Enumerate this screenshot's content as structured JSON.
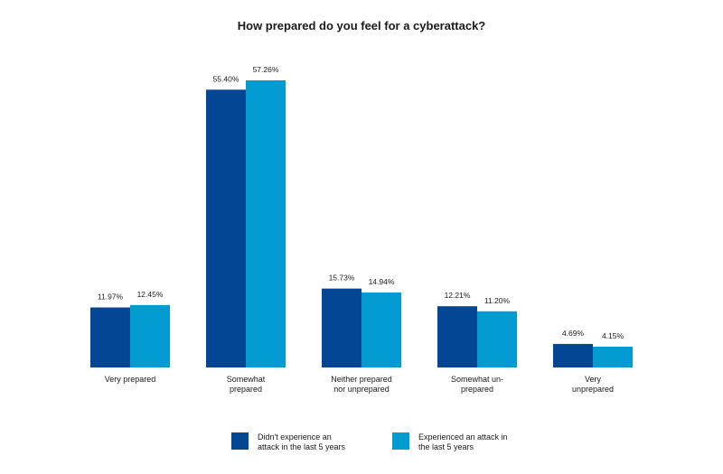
{
  "chart_data": {
    "type": "bar",
    "title": "How prepared do you feel for a cyberattack?",
    "categories": [
      [
        "Very prepared"
      ],
      [
        "Somewhat",
        "prepared"
      ],
      [
        "Neither prepared",
        "nor unprepared"
      ],
      [
        "Somewhat un-",
        "prepared"
      ],
      [
        "Very",
        "unprepared"
      ]
    ],
    "series": [
      {
        "name": "Didn't experience an attack in the last 5 years",
        "color": "#034694",
        "values": [
          11.97,
          55.4,
          15.73,
          12.21,
          4.69
        ],
        "labels": [
          "11.97%",
          "55.40%",
          "15.73%",
          "12.21%",
          "4.69%"
        ]
      },
      {
        "name": "Experienced an attack in the last 5 years",
        "color": "#019bd1",
        "values": [
          12.45,
          57.26,
          14.94,
          11.2,
          4.15
        ],
        "labels": [
          "12.45%",
          "57.26%",
          "14.94%",
          "11.20%",
          "4.15%"
        ]
      }
    ],
    "xlabel": "",
    "ylabel": "",
    "ylim": [
      0,
      57.26
    ],
    "grid": false,
    "legend_position": "bottom"
  },
  "legend": {
    "item1": [
      "Didn't experience an",
      "attack in the last 5 years"
    ],
    "item2": [
      "Experienced an attack in",
      "the last 5 years"
    ]
  }
}
